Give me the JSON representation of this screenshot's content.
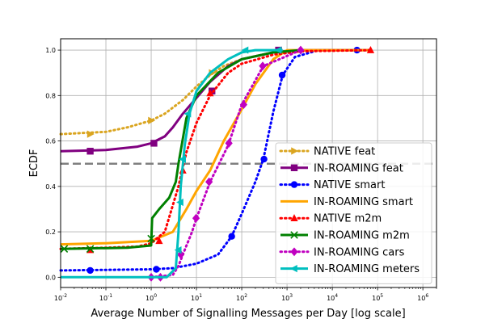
{
  "chart_data": {
    "type": "line",
    "title": "",
    "xlabel": "Average Number of Signalling Messages per Day [log scale]",
    "ylabel": "ECDF",
    "xscale": "log",
    "xlim": [
      0.01,
      2000000
    ],
    "ylim": [
      -0.045,
      1.05
    ],
    "grid": true,
    "legend_position": "lower-right",
    "x_ticks": [
      0.01,
      0.1,
      1,
      10,
      100,
      1000,
      10000,
      100000,
      1000000
    ],
    "x_tick_labels": [
      {
        "base": "10",
        "exp": "-2"
      },
      {
        "base": "10",
        "exp": "-1"
      },
      {
        "base": "10",
        "exp": "0"
      },
      {
        "base": "10",
        "exp": "1"
      },
      {
        "base": "10",
        "exp": "2"
      },
      {
        "base": "10",
        "exp": "3"
      },
      {
        "base": "10",
        "exp": "4"
      },
      {
        "base": "10",
        "exp": "5"
      },
      {
        "base": "10",
        "exp": "6"
      }
    ],
    "y_ticks": [
      0.0,
      0.2,
      0.4,
      0.6,
      0.8,
      1.0
    ],
    "y_tick_labels": [
      "0.0",
      "0.2",
      "0.4",
      "0.6",
      "0.8",
      "1.0"
    ],
    "reference_line": {
      "y": 0.5,
      "color": "#808080",
      "style": "dashed"
    },
    "series": [
      {
        "name": "NATIVE feat",
        "color": "#DAA520",
        "style": "dotted",
        "marker": "triangle-right",
        "points": [
          [
            0.01,
            0.63
          ],
          [
            0.03,
            0.635
          ],
          [
            0.1,
            0.64
          ],
          [
            0.3,
            0.66
          ],
          [
            1,
            0.69
          ],
          [
            2,
            0.72
          ],
          [
            5,
            0.78
          ],
          [
            10,
            0.84
          ],
          [
            20,
            0.89
          ],
          [
            40,
            0.93
          ],
          [
            100,
            0.96
          ],
          [
            500,
            0.99
          ],
          [
            2000,
            1.0
          ],
          [
            70000,
            1.0
          ]
        ],
        "marker_points": [
          [
            0.045,
            0.63
          ],
          [
            1.0,
            0.69
          ],
          [
            22,
            0.9
          ]
        ]
      },
      {
        "name": "IN-ROAMING feat",
        "color": "#800080",
        "style": "solid",
        "marker": "square",
        "points": [
          [
            0.01,
            0.555
          ],
          [
            0.1,
            0.56
          ],
          [
            0.5,
            0.575
          ],
          [
            1,
            0.59
          ],
          [
            2,
            0.62
          ],
          [
            3,
            0.66
          ],
          [
            5,
            0.72
          ],
          [
            10,
            0.79
          ],
          [
            20,
            0.86
          ],
          [
            50,
            0.93
          ],
          [
            100,
            0.96
          ],
          [
            500,
            0.99
          ],
          [
            2000,
            1.0
          ],
          [
            70000,
            1.0
          ]
        ],
        "marker_points": [
          [
            0.045,
            0.555
          ],
          [
            1.15,
            0.59
          ],
          [
            22,
            0.82
          ],
          [
            650,
            1.0
          ]
        ]
      },
      {
        "name": "NATIVE smart",
        "color": "#0000FF",
        "style": "dotted",
        "marker": "circle",
        "points": [
          [
            0.01,
            0.03
          ],
          [
            1,
            0.035
          ],
          [
            3,
            0.04
          ],
          [
            10,
            0.06
          ],
          [
            30,
            0.1
          ],
          [
            60,
            0.18
          ],
          [
            100,
            0.28
          ],
          [
            200,
            0.42
          ],
          [
            300,
            0.52
          ],
          [
            500,
            0.73
          ],
          [
            800,
            0.89
          ],
          [
            1500,
            0.97
          ],
          [
            5000,
            1.0
          ],
          [
            70000,
            1.0
          ]
        ],
        "marker_points": [
          [
            0.045,
            0.03
          ],
          [
            1.3,
            0.035
          ],
          [
            60,
            0.18
          ],
          [
            310,
            0.52
          ],
          [
            780,
            0.89
          ],
          [
            35000,
            1.0
          ]
        ]
      },
      {
        "name": "IN-ROAMING smart",
        "color": "#FFA500",
        "style": "solid",
        "marker": "none",
        "points": [
          [
            0.01,
            0.145
          ],
          [
            0.1,
            0.15
          ],
          [
            1,
            0.16
          ],
          [
            3,
            0.2
          ],
          [
            6,
            0.3
          ],
          [
            10,
            0.38
          ],
          [
            20,
            0.47
          ],
          [
            40,
            0.6
          ],
          [
            100,
            0.74
          ],
          [
            200,
            0.85
          ],
          [
            500,
            0.96
          ],
          [
            1000,
            1.0
          ],
          [
            70000,
            1.0
          ]
        ],
        "marker_points": []
      },
      {
        "name": "NATIVE m2m",
        "color": "#FF0000",
        "style": "dotted",
        "marker": "triangle-up",
        "points": [
          [
            0.01,
            0.125
          ],
          [
            0.1,
            0.13
          ],
          [
            0.5,
            0.135
          ],
          [
            1,
            0.15
          ],
          [
            2,
            0.2
          ],
          [
            4,
            0.4
          ],
          [
            6,
            0.55
          ],
          [
            10,
            0.68
          ],
          [
            20,
            0.8
          ],
          [
            50,
            0.9
          ],
          [
            100,
            0.94
          ],
          [
            500,
            0.98
          ],
          [
            2000,
            0.995
          ],
          [
            70000,
            1.0
          ]
        ],
        "marker_points": [
          [
            0.045,
            0.12
          ],
          [
            1.5,
            0.16
          ],
          [
            5,
            0.47
          ],
          [
            20,
            0.81
          ],
          [
            70000,
            1.0
          ]
        ]
      },
      {
        "name": "IN-ROAMING m2m",
        "color": "#008000",
        "style": "solid",
        "marker": "x",
        "points": [
          [
            0.01,
            0.125
          ],
          [
            0.3,
            0.13
          ],
          [
            1,
            0.14
          ],
          [
            1.05,
            0.26
          ],
          [
            1.5,
            0.3
          ],
          [
            2.5,
            0.35
          ],
          [
            3.5,
            0.42
          ],
          [
            4,
            0.5
          ],
          [
            6,
            0.7
          ],
          [
            10,
            0.8
          ],
          [
            30,
            0.9
          ],
          [
            100,
            0.96
          ],
          [
            500,
            0.99
          ],
          [
            2000,
            1.0
          ]
        ],
        "marker_points": [
          [
            0.012,
            0.125
          ],
          [
            0.045,
            0.125
          ],
          [
            1.0,
            0.17
          ]
        ]
      },
      {
        "name": "IN-ROAMING cars",
        "color": "#C000C0",
        "style": "dotted",
        "marker": "diamond",
        "points": [
          [
            1,
            0.0
          ],
          [
            3,
            0.01
          ],
          [
            4,
            0.05
          ],
          [
            5,
            0.1
          ],
          [
            8,
            0.2
          ],
          [
            10,
            0.26
          ],
          [
            20,
            0.42
          ],
          [
            50,
            0.58
          ],
          [
            100,
            0.76
          ],
          [
            300,
            0.93
          ],
          [
            2000,
            1.0
          ]
        ],
        "marker_points": [
          [
            1.0,
            0.0
          ],
          [
            1.6,
            0.0
          ],
          [
            4.5,
            0.1
          ],
          [
            9.8,
            0.26
          ],
          [
            19,
            0.42
          ],
          [
            52,
            0.59
          ],
          [
            110,
            0.76
          ],
          [
            290,
            0.93
          ],
          [
            2000,
            1.0
          ]
        ]
      },
      {
        "name": "IN-ROAMING meters",
        "color": "#00BFBF",
        "style": "solid",
        "marker": "triangle-left",
        "points": [
          [
            0.01,
            0.0
          ],
          [
            2.2,
            0.0
          ],
          [
            3.5,
            0.04
          ],
          [
            4,
            0.2
          ],
          [
            4.5,
            0.4
          ],
          [
            5.5,
            0.58
          ],
          [
            7,
            0.72
          ],
          [
            10,
            0.82
          ],
          [
            20,
            0.9
          ],
          [
            50,
            0.96
          ],
          [
            100,
            0.99
          ],
          [
            200,
            1.0
          ],
          [
            800,
            1.0
          ]
        ],
        "marker_points": [
          [
            4.0,
            0.12
          ],
          [
            4.4,
            0.33
          ],
          [
            5.0,
            0.52
          ],
          [
            6.5,
            0.72
          ],
          [
            120,
            1.0
          ],
          [
            650,
            1.0
          ]
        ]
      }
    ]
  }
}
